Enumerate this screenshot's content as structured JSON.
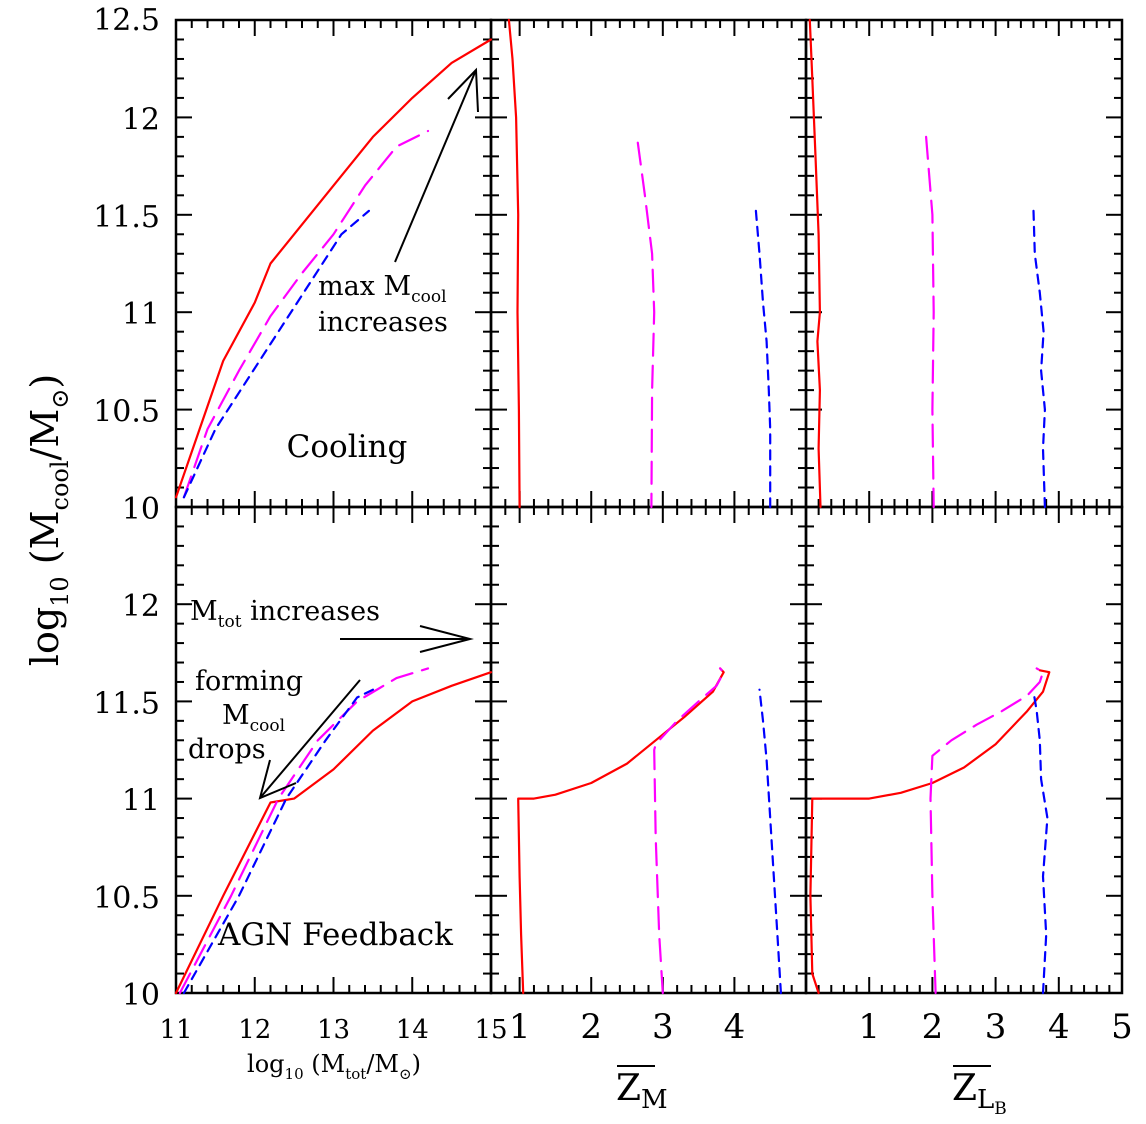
{
  "chart_data": {
    "type": "line",
    "ylabel": {
      "main": "log",
      "sub": "10",
      "open": " (M",
      "sub2": "cool",
      "rest": "/M",
      "sun": "⊙",
      "close": ")"
    },
    "ylim": [
      10,
      12.5
    ],
    "yticks": [
      [
        "10",
        "10.5",
        "11",
        "11.5",
        "12",
        "12.5"
      ],
      [
        "10",
        "10.5",
        "11",
        "11.5",
        "12"
      ]
    ],
    "row_ylim": [
      [
        10,
        12.5
      ],
      [
        10,
        12.5
      ]
    ],
    "columns": [
      {
        "xlim": [
          11,
          15
        ],
        "xticks": [
          "11",
          "12",
          "13",
          "14",
          "15"
        ],
        "xlabel": {
          "main": "log",
          "sub": "10",
          "rest": " (M",
          "sub2": "tot",
          "rest2": "/M",
          "sun": "⊙",
          "close": ")"
        }
      },
      {
        "xlim": [
          0.6,
          5
        ],
        "xticks": [
          "1",
          "2",
          "3",
          "4"
        ],
        "xlabel": {
          "main": "Z",
          "sub": "M"
        }
      },
      {
        "xlim": [
          0,
          5
        ],
        "xticks": [
          "1",
          "2",
          "3",
          "4",
          "5"
        ],
        "xlabel": {
          "main": "Z",
          "sub": "L",
          "subsub": "B"
        }
      }
    ],
    "series_styles": [
      {
        "color": "#ff0000",
        "dash": ""
      },
      {
        "color": "#ff00ff",
        "dash": "22,10"
      },
      {
        "color": "#0000ff",
        "dash": "9,7"
      }
    ],
    "panels": [
      {
        "row": 0,
        "col": 0,
        "series": [
          {
            "x": [
              11,
              11.3,
              11.6,
              12,
              12.2,
              12.5,
              13,
              13.5,
              14,
              14.5,
              15
            ],
            "y": [
              10.05,
              10.4,
              10.75,
              11.05,
              11.25,
              11.4,
              11.65,
              11.9,
              12.1,
              12.28,
              12.4
            ]
          },
          {
            "x": [
              11.1,
              11.4,
              11.8,
              12.2,
              12.6,
              13,
              13.4,
              13.8,
              14.2
            ],
            "y": [
              10.05,
              10.4,
              10.7,
              10.98,
              11.2,
              11.4,
              11.65,
              11.85,
              11.93
            ]
          },
          {
            "x": [
              11.1,
              11.5,
              11.9,
              12.3,
              12.7,
              13.1,
              13.45
            ],
            "y": [
              10.05,
              10.4,
              10.65,
              10.9,
              11.15,
              11.4,
              11.52
            ]
          }
        ]
      },
      {
        "row": 0,
        "col": 1,
        "series": [
          {
            "x": [
              0.85,
              0.9,
              0.95,
              0.98,
              0.97,
              0.99,
              1.0
            ],
            "y": [
              12.5,
              12.3,
              12.0,
              11.5,
              11.0,
              10.5,
              10.0
            ]
          },
          {
            "x": [
              2.65,
              2.75,
              2.85,
              2.88,
              2.85,
              2.84
            ],
            "y": [
              11.87,
              11.6,
              11.3,
              11.0,
              10.6,
              10.0
            ]
          },
          {
            "x": [
              4.3,
              4.35,
              4.4,
              4.45,
              4.48,
              4.5,
              4.5
            ],
            "y": [
              11.52,
              11.3,
              11.05,
              10.85,
              10.6,
              10.4,
              10.0
            ]
          }
        ]
      },
      {
        "row": 0,
        "col": 2,
        "series": [
          {
            "x": [
              0.06,
              0.1,
              0.15,
              0.2,
              0.22,
              0.18,
              0.22,
              0.2,
              0.23
            ],
            "y": [
              12.5,
              12.2,
              11.8,
              11.4,
              11.0,
              10.85,
              10.6,
              10.3,
              10.0
            ]
          },
          {
            "x": [
              1.9,
              2.0,
              2.02,
              2.0,
              2.02
            ],
            "y": [
              11.9,
              11.5,
              11.0,
              10.5,
              10.0
            ]
          },
          {
            "x": [
              3.6,
              3.62,
              3.7,
              3.76,
              3.72,
              3.78,
              3.75,
              3.78
            ],
            "y": [
              11.52,
              11.3,
              11.1,
              10.9,
              10.7,
              10.5,
              10.3,
              10.0
            ]
          }
        ]
      },
      {
        "row": 1,
        "col": 0,
        "series": [
          {
            "x": [
              11,
              11.6,
              12.2,
              12.5,
              13,
              13.5,
              14,
              14.5,
              15
            ],
            "y": [
              10.0,
              10.5,
              10.98,
              11.0,
              11.15,
              11.35,
              11.5,
              11.58,
              11.65
            ]
          },
          {
            "x": [
              11.05,
              11.7,
              12.3,
              12.8,
              13.3,
              13.8,
              14.2
            ],
            "y": [
              10.0,
              10.5,
              11.0,
              11.3,
              11.5,
              11.62,
              11.67
            ]
          },
          {
            "x": [
              11.1,
              11.8,
              12.4,
              12.9,
              13.3,
              13.5
            ],
            "y": [
              10.0,
              10.5,
              11.0,
              11.3,
              11.52,
              11.56
            ]
          }
        ]
      },
      {
        "row": 1,
        "col": 1,
        "series": [
          {
            "x": [
              1.05,
              1.02,
              1.0,
              0.98,
              1.0,
              1.2,
              1.5,
              2.0,
              2.5,
              2.9,
              3.3,
              3.7,
              3.85,
              3.8
            ],
            "y": [
              10.0,
              10.3,
              10.6,
              11.0,
              11.0,
              11.0,
              11.02,
              11.08,
              11.18,
              11.3,
              11.42,
              11.55,
              11.65,
              11.67
            ]
          },
          {
            "x": [
              3.0,
              2.95,
              2.9,
              2.88,
              2.9,
              3.2,
              3.5,
              3.75,
              3.85,
              3.8
            ],
            "y": [
              10.0,
              10.3,
              10.8,
              11.25,
              11.28,
              11.4,
              11.5,
              11.58,
              11.65,
              11.67
            ]
          },
          {
            "x": [
              4.65,
              4.6,
              4.55,
              4.5,
              4.45,
              4.4,
              4.35
            ],
            "y": [
              10.0,
              10.3,
              10.6,
              10.9,
              11.2,
              11.4,
              11.56
            ]
          }
        ]
      },
      {
        "row": 1,
        "col": 2,
        "series": [
          {
            "x": [
              0.2,
              0.1,
              0.07,
              0.1,
              0.5,
              1.0,
              1.5,
              2.0,
              2.5,
              3.0,
              3.5,
              3.75,
              3.85,
              3.7
            ],
            "y": [
              10.0,
              10.1,
              10.5,
              11.0,
              11.0,
              11.0,
              11.03,
              11.08,
              11.16,
              11.28,
              11.45,
              11.55,
              11.65,
              11.66
            ]
          },
          {
            "x": [
              2.05,
              2.0,
              1.97,
              2.0,
              2.3,
              2.7,
              3.1,
              3.5,
              3.7,
              3.75,
              3.65
            ],
            "y": [
              10.0,
              10.5,
              11.0,
              11.22,
              11.3,
              11.38,
              11.45,
              11.53,
              11.6,
              11.65,
              11.67
            ]
          },
          {
            "x": [
              3.75,
              3.8,
              3.75,
              3.82,
              3.72,
              3.7,
              3.65,
              3.6
            ],
            "y": [
              10.0,
              10.3,
              10.6,
              10.9,
              11.1,
              11.3,
              11.45,
              11.55
            ]
          }
        ]
      }
    ],
    "annotations": {
      "cooling": "Cooling",
      "max_line1": "max M",
      "max_sub": "cool",
      "max_line2": "increases",
      "mtot": "M",
      "mtot_sub": "tot",
      "mtot_rest": " increases",
      "forming1": "forming",
      "forming2": "M",
      "forming2_sub": "cool",
      "forming3": "drops",
      "agn": "AGN Feedback"
    }
  }
}
